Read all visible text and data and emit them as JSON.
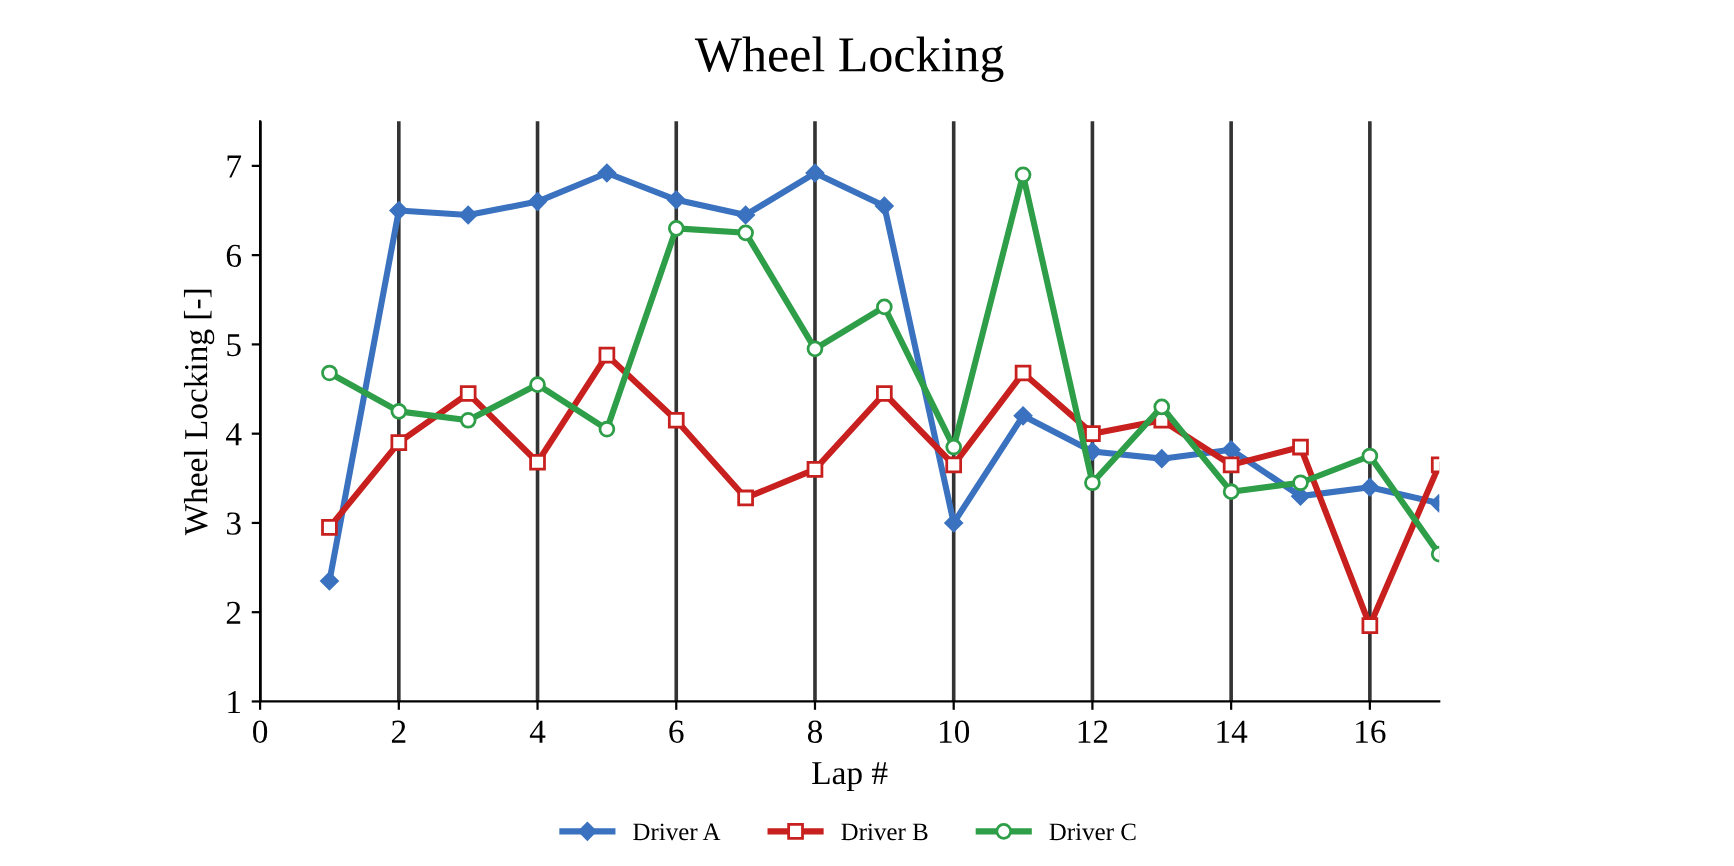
{
  "chart_data": {
    "type": "line",
    "title": "Wheel Locking",
    "xlabel": "Lap #",
    "ylabel": "Wheel Locking [-]",
    "x": [
      1,
      2,
      3,
      4,
      5,
      6,
      7,
      8,
      9,
      10,
      11,
      12,
      13,
      14,
      15,
      16,
      17
    ],
    "series": [
      {
        "name": "Driver A",
        "color": "#3a72c0",
        "marker": "diamond",
        "values": [
          2.35,
          6.5,
          6.45,
          6.6,
          6.92,
          6.62,
          6.45,
          6.92,
          6.55,
          3.0,
          4.2,
          3.8,
          3.72,
          3.82,
          3.3,
          3.4,
          3.22
        ]
      },
      {
        "name": "Driver B",
        "color": "#c8201e",
        "marker": "square",
        "values": [
          2.95,
          3.9,
          4.45,
          3.68,
          4.88,
          4.15,
          3.28,
          3.6,
          4.45,
          3.65,
          4.68,
          4.0,
          4.15,
          3.65,
          3.85,
          1.85,
          3.65
        ]
      },
      {
        "name": "Driver C",
        "color": "#2e9e48",
        "marker": "circle",
        "values": [
          4.68,
          4.25,
          4.15,
          4.55,
          4.05,
          6.3,
          6.25,
          4.95,
          5.42,
          3.85,
          6.9,
          3.45,
          4.3,
          3.35,
          3.45,
          3.75,
          2.65
        ]
      }
    ],
    "xlim": [
      0,
      17
    ],
    "xticks": [
      0,
      2,
      4,
      6,
      8,
      10,
      12,
      14,
      16
    ],
    "ylim": [
      1,
      7.5
    ],
    "yticks": [
      1,
      2,
      3,
      4,
      5,
      6,
      7
    ],
    "grid": "x",
    "legend": "bottom"
  }
}
